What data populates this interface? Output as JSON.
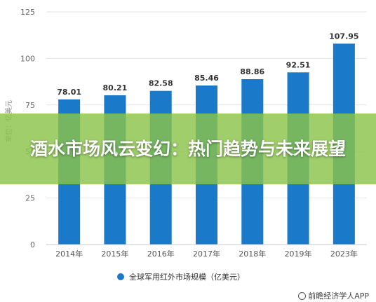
{
  "chart_data": {
    "type": "bar",
    "categories": [
      "2014年",
      "2015年",
      "2016年",
      "2017年",
      "2018年",
      "2019年",
      "2023年"
    ],
    "series": [
      {
        "name": "全球军用红外市场规模（亿美元）",
        "values": [
          78.01,
          80.21,
          82.58,
          85.46,
          88.86,
          92.51,
          107.95
        ],
        "labels": [
          "78.01",
          "80.21",
          "82.58",
          "85.46",
          "88.86",
          "92.51",
          "107.95"
        ],
        "color": "#1a7ac9"
      }
    ],
    "ylabel": "单位：亿美元",
    "ylim": [
      0,
      125
    ],
    "yticks": [
      0,
      25,
      50,
      75,
      100,
      125
    ],
    "grid": true,
    "legend_position": "bottom"
  },
  "banner": {
    "text": "酒水市场风云变幻：热门趋势与未来展望"
  },
  "credit": {
    "text": "前瞻经济学人APP",
    "icon": "circle-logo-icon"
  },
  "colors": {
    "bar": "#1a7ac9",
    "banner": "#8bc34a",
    "grid": "#e6e6e6"
  }
}
